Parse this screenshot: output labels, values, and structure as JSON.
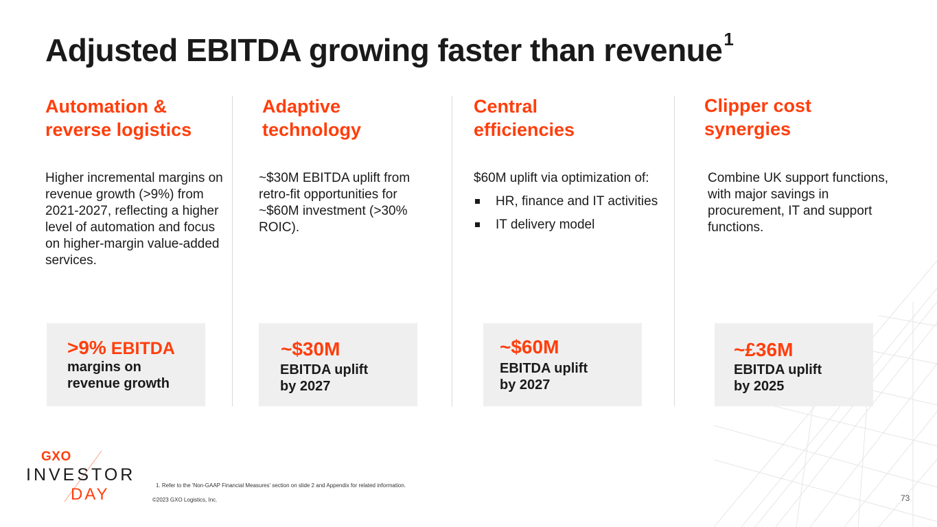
{
  "title": {
    "text": "Adjusted EBITDA growing faster than revenue",
    "footnote_mark": "1"
  },
  "columns": [
    {
      "heading": [
        "Automation &",
        "reverse logistics"
      ],
      "body": "Higher incremental margins on revenue growth (>9%) from 2021-2027, reflecting a higher level of automation and focus on higher-margin value-added services.",
      "box": {
        "big": ">9%",
        "big_suffix": " EBITDA",
        "sub": [
          "margins on",
          "revenue growth"
        ]
      }
    },
    {
      "heading": [
        "Adaptive",
        "technology"
      ],
      "body": "~$30M EBITDA uplift from retro-fit opportunities for ~$60M investment (>30% ROIC).",
      "box": {
        "big": "~$30M",
        "sub": [
          "EBITDA uplift",
          "by 2027"
        ]
      }
    },
    {
      "heading": [
        "Central",
        "efficiencies"
      ],
      "intro": "$60M uplift via optimization of:",
      "bullets": [
        "HR, finance and IT activities",
        "IT delivery model"
      ],
      "box": {
        "big": "~$60M",
        "sub": [
          "EBITDA uplift",
          "by 2027"
        ]
      }
    },
    {
      "heading": [
        "Clipper cost",
        "synergies"
      ],
      "body": "Combine UK support functions, with major savings in procurement, IT and support functions.",
      "box": {
        "big": "~£36M",
        "sub": [
          "EBITDA uplift",
          "by 2025"
        ]
      }
    }
  ],
  "logo": {
    "brand": "GXO",
    "line1": "INVESTOR",
    "line2": "DAY"
  },
  "footnote": "1. Refer to the 'Non-GAAP Financial Measures' section on slide 2 and Appendix for related information.",
  "copyright": "©2023 GXO Logistics, Inc.",
  "page_number": "73",
  "colors": {
    "accent": "#ff3e0c",
    "text": "#1a1a1a",
    "box_bg": "#efefef",
    "divider": "#d9d9d9"
  }
}
